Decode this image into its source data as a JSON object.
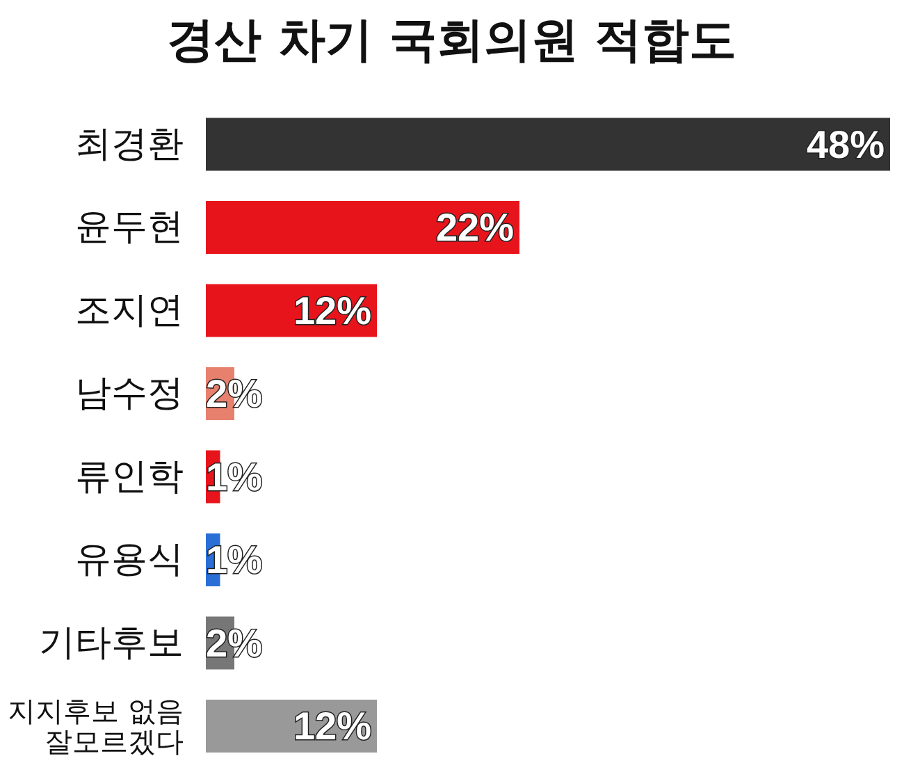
{
  "chart_data": {
    "type": "bar",
    "orientation": "horizontal",
    "relative": false,
    "title": "경산 차기 국회의원 적합도",
    "categories": [
      "최경환",
      "윤두현",
      "조지연",
      "남수정",
      "류인학",
      "유용식",
      "기타후보",
      "지지후보 없음\n잘모르겠다"
    ],
    "values": [
      48,
      22,
      12,
      2,
      1,
      1,
      2,
      12
    ],
    "colors": [
      "#333333",
      "#e8141c",
      "#e8141c",
      "#e8806e",
      "#e8141c",
      "#2a6fd6",
      "#777777",
      "#999999"
    ],
    "value_labels": [
      "48%",
      "22%",
      "12%",
      "2%",
      "1%",
      "1%",
      "2%",
      "12%"
    ]
  }
}
